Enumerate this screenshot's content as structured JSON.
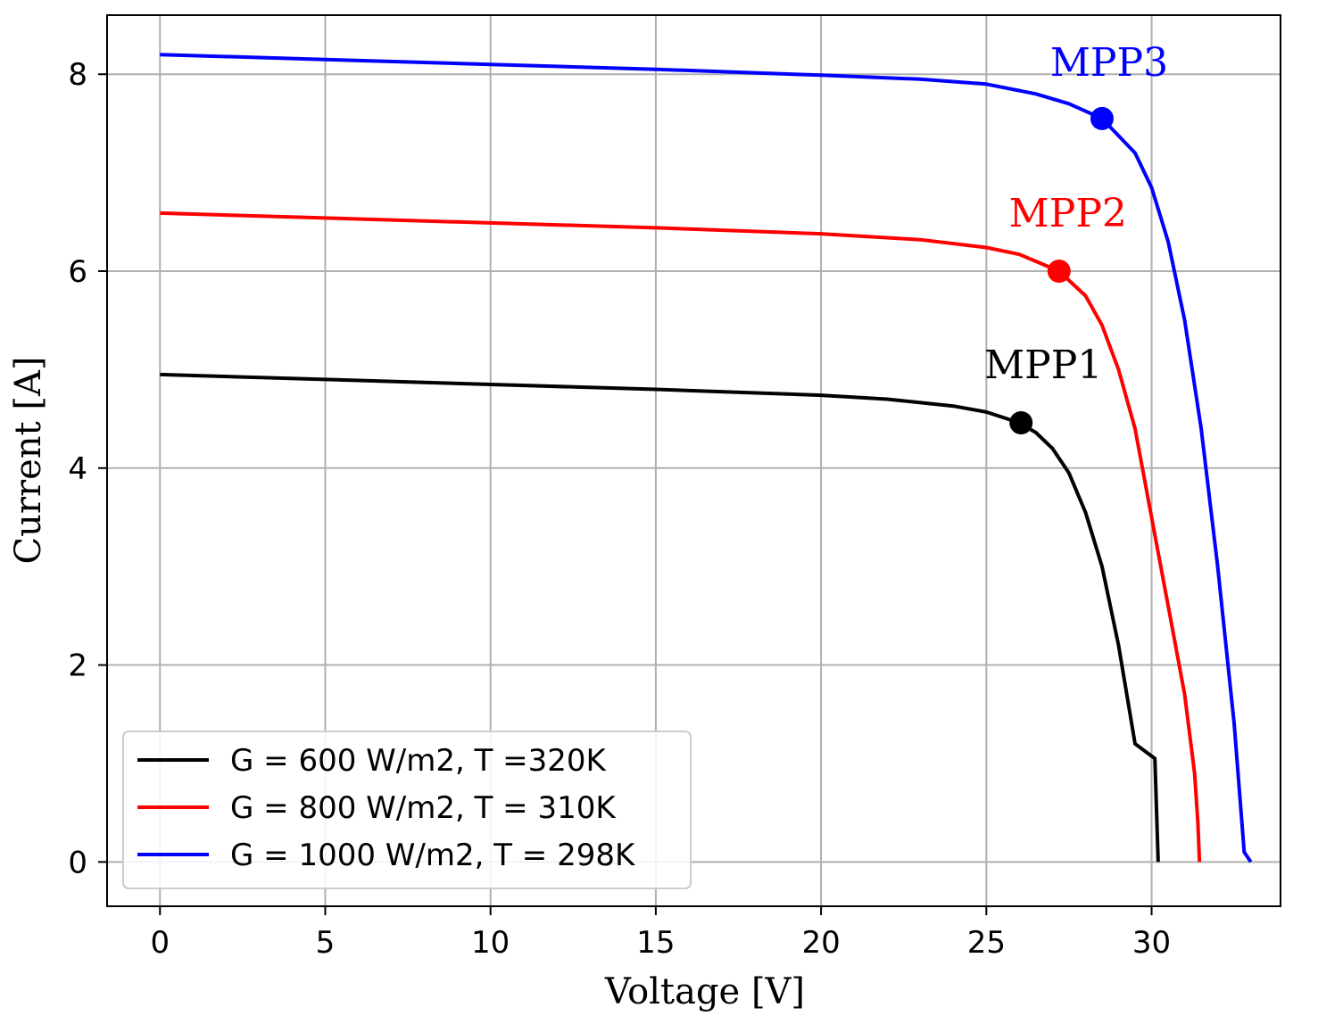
{
  "chart_data": {
    "type": "line",
    "title": "",
    "xlabel": "Voltage [V]",
    "ylabel": "Current [A]",
    "xlim": [
      -1.6,
      33.9
    ],
    "ylim": [
      -0.45,
      8.6
    ],
    "xticks": [
      0,
      5,
      10,
      15,
      20,
      25,
      30
    ],
    "yticks": [
      0,
      2,
      4,
      6,
      8
    ],
    "grid": true,
    "legend_position": "lower-left",
    "series": [
      {
        "name": "G = 600 W/m2, T =320K",
        "color": "#000000",
        "x": [
          0,
          5,
          10,
          15,
          20,
          22,
          24,
          25,
          26,
          26.5,
          27,
          27.5,
          28,
          28.5,
          29,
          29.5,
          30.1,
          30.2
        ],
        "y": [
          4.95,
          4.9,
          4.85,
          4.8,
          4.74,
          4.7,
          4.63,
          4.57,
          4.46,
          4.36,
          4.2,
          3.95,
          3.55,
          3.0,
          2.2,
          1.2,
          1.05,
          0
        ]
      },
      {
        "name": "G = 800 W/m2, T = 310K",
        "color": "#ff0000",
        "x": [
          0,
          5,
          10,
          15,
          20,
          23,
          25,
          26,
          26.5,
          27.2,
          28,
          28.5,
          29,
          29.5,
          30,
          30.5,
          31,
          31.3,
          31.4,
          31.45
        ],
        "y": [
          6.59,
          6.54,
          6.49,
          6.44,
          6.38,
          6.32,
          6.24,
          6.17,
          6.1,
          6.0,
          5.75,
          5.45,
          5.0,
          4.4,
          3.5,
          2.6,
          1.7,
          0.9,
          0.4,
          0
        ]
      },
      {
        "name": "G = 1000 W/m2, T = 298K",
        "color": "#0000ff",
        "x": [
          0,
          5,
          10,
          15,
          20,
          23,
          25,
          26.5,
          27.5,
          28.5,
          29.5,
          30,
          30.5,
          31,
          31.5,
          32,
          32.5,
          32.8,
          33.0
        ],
        "y": [
          8.2,
          8.15,
          8.1,
          8.05,
          7.99,
          7.95,
          7.9,
          7.8,
          7.7,
          7.55,
          7.2,
          6.85,
          6.3,
          5.5,
          4.4,
          3.0,
          1.4,
          0.1,
          0
        ]
      }
    ],
    "annotations": [
      {
        "label": "MPP1",
        "x": 26.05,
        "y": 4.46,
        "color": "#000000"
      },
      {
        "label": "MPP2",
        "x": 27.2,
        "y": 6.0,
        "color": "#ff0000"
      },
      {
        "label": "MPP3",
        "x": 28.5,
        "y": 7.55,
        "color": "#0000ff"
      }
    ]
  }
}
